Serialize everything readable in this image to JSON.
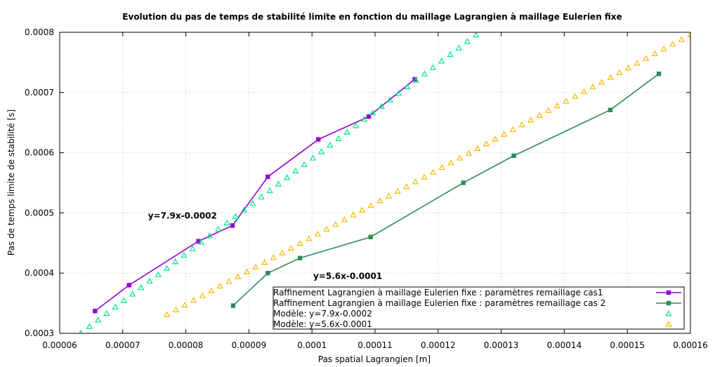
{
  "chart_data": {
    "type": "line",
    "title": "Evolution du pas de temps de stabilité limite en fonction du maillage Lagrangien à maillage Eulerien fixe",
    "xlabel": "Pas spatial Lagrangien [m]",
    "ylabel": "Pas de temps limite de stabilité [s]",
    "xlim": [
      6e-05,
      0.00016
    ],
    "ylim": [
      0.0003,
      0.0008
    ],
    "x_ticks": [
      "0.00006",
      "0.00007",
      "0.00008",
      "0.00009",
      "0.0001",
      "0.00011",
      "0.00012",
      "0.00013",
      "0.00014",
      "0.00015",
      "0.00016"
    ],
    "y_ticks": [
      "0.0003",
      "0.0004",
      "0.0005",
      "0.0006",
      "0.0007",
      "0.0008"
    ],
    "grid": true,
    "legend_position": "bottom-right",
    "series": [
      {
        "name": "Raffinement Lagrangien à maillage Eulerien fixe : paramètres remaillage cas1",
        "style": "line-square",
        "color": "#9400d3",
        "x": [
          6.56e-05,
          7.1e-05,
          8.2e-05,
          8.74e-05,
          9.3e-05,
          0.000101,
          0.000109,
          0.0001163
        ],
        "y": [
          0.000337,
          0.00038,
          0.000453,
          0.000479,
          0.00056,
          0.000622,
          0.00066,
          0.000722
        ]
      },
      {
        "name": "Raffinement Lagrangien à maillage Eulerien fixe : paramètres remaillage cas 2",
        "style": "line-square",
        "color": "#2e8b57",
        "x": [
          8.75e-05,
          9.3e-05,
          9.81e-05,
          0.0001093,
          0.000124,
          0.000132,
          0.0001473,
          0.000155
        ],
        "y": [
          0.000346,
          0.0004,
          0.000425,
          0.00046,
          0.00055,
          0.000595,
          0.000671,
          0.000731
        ]
      },
      {
        "name": "Modèle: y=7.9x-0.0002",
        "style": "triangles",
        "color": "#00e88a",
        "model": {
          "slope": 7.9,
          "intercept": -0.0002,
          "x_start": 6.2e-05,
          "x_end": 0.000126,
          "points": 48
        }
      },
      {
        "name": "Modèle: y=5.6x-0.0001",
        "style": "triangles",
        "color": "#ffb800",
        "model": {
          "slope": 5.6,
          "intercept": -0.0001,
          "x_start": 7.7e-05,
          "x_end": 0.00016,
          "points": 60
        }
      }
    ],
    "annotations": [
      {
        "text": "y=7.9x-0.0002",
        "x": 7.4e-05,
        "y": 0.000495
      },
      {
        "text": "y=5.6x-0.0001",
        "x": 0.0001002,
        "y": 0.000395
      }
    ]
  }
}
